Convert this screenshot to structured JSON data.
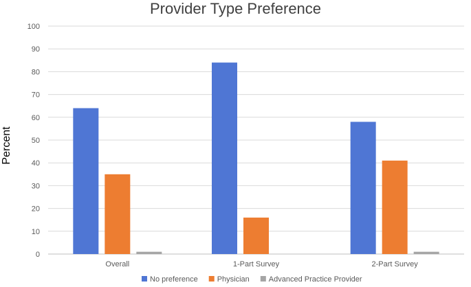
{
  "chart_data": {
    "type": "bar",
    "title": "Provider Type Preference",
    "xlabel": "",
    "ylabel": "Percent",
    "categories": [
      "Overall",
      "1-Part Survey",
      "2-Part Survey"
    ],
    "series": [
      {
        "name": "No preference",
        "values": [
          64,
          84,
          58
        ],
        "color": "#4f76d4"
      },
      {
        "name": "Physician",
        "values": [
          35,
          16,
          41
        ],
        "color": "#ed7d31"
      },
      {
        "name": "Advanced Practice Provider",
        "values": [
          1,
          0,
          1
        ],
        "color": "#a5a5a5"
      }
    ],
    "ylim": [
      0,
      100
    ],
    "yticks": [
      "0",
      "10",
      "20",
      "30",
      "40",
      "50",
      "60",
      "70",
      "80",
      "90",
      "100"
    ],
    "grid": true,
    "legend_position": "bottom"
  }
}
